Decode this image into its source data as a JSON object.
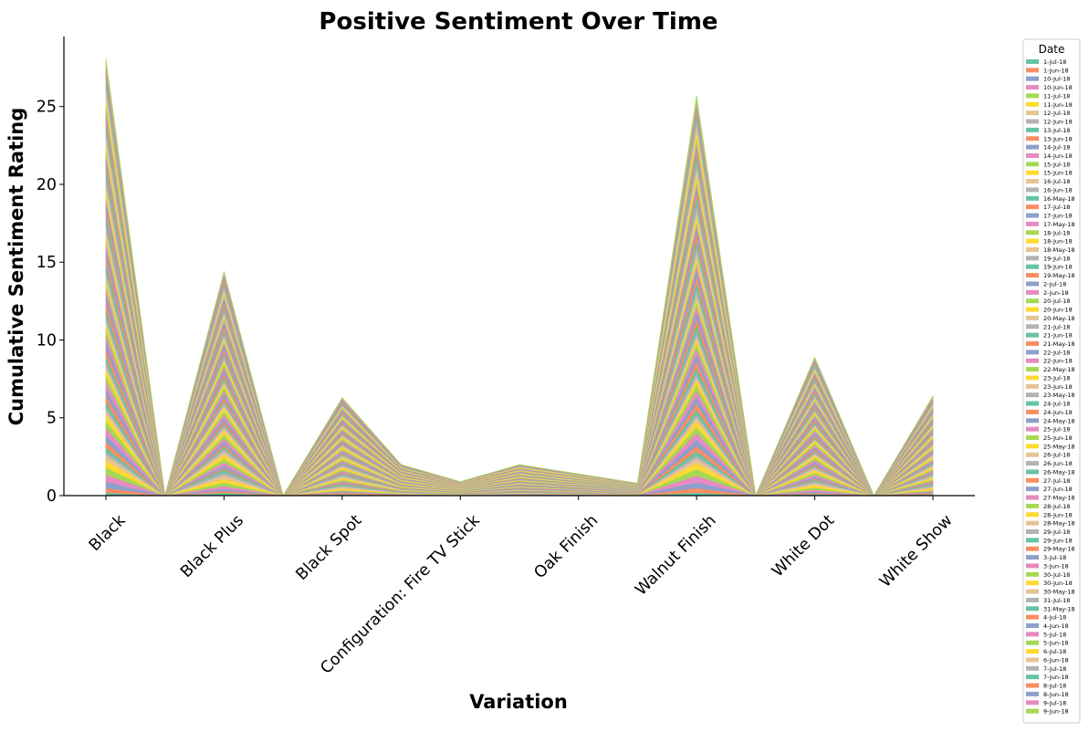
{
  "chart_data": {
    "type": "area",
    "stacked": true,
    "title": "Positive Sentiment Over Time",
    "xlabel": "Variation",
    "ylabel": "Cumulative Sentiment Rating",
    "ylim": [
      0,
      29.5
    ],
    "yticks": [
      0,
      5,
      10,
      15,
      20,
      25
    ],
    "grid": false,
    "legend": {
      "title": "Date",
      "placement": "right"
    },
    "categories": [
      "Black",
      "",
      "Black  Plus",
      "",
      "Black  Spot",
      "",
      "Configuration: Fire TV Stick",
      "",
      "Oak Finish",
      "",
      "Walnut Finish",
      "",
      "White  Dot",
      "",
      "White  Show"
    ],
    "tick_categories": [
      "Black",
      "Black  Plus",
      "Black  Spot",
      "Configuration: Fire TV Stick",
      "Oak Finish",
      "Walnut Finish",
      "White  Dot",
      "White  Show"
    ],
    "totals": [
      28.1,
      0,
      14.4,
      0,
      6.3,
      2.0,
      0.9,
      2.0,
      1.4,
      0.8,
      25.7,
      0,
      8.9,
      0,
      6.4
    ],
    "series_names": [
      "1-Jul-18",
      "1-Jun-18",
      "10-Jul-18",
      "10-Jun-18",
      "11-Jul-18",
      "11-Jun-18",
      "12-Jul-18",
      "12-Jun-18",
      "13-Jul-18",
      "13-Jun-18",
      "14-Jul-18",
      "14-Jun-18",
      "15-Jul-18",
      "15-Jun-18",
      "16-Jul-18",
      "16-Jun-18",
      "16-May-18",
      "17-Jul-18",
      "17-Jun-18",
      "17-May-18",
      "18-Jul-18",
      "18-Jun-18",
      "18-May-18",
      "19-Jul-18",
      "19-Jun-18",
      "19-May-18",
      "2-Jul-18",
      "2-Jun-18",
      "20-Jul-18",
      "20-Jun-18",
      "20-May-18",
      "21-Jul-18",
      "21-Jun-18",
      "21-May-18",
      "22-Jul-18",
      "22-Jun-18",
      "22-May-18",
      "23-Jul-18",
      "23-Jun-18",
      "23-May-18",
      "24-Jul-18",
      "24-Jun-18",
      "24-May-18",
      "25-Jul-18",
      "25-Jun-18",
      "25-May-18",
      "26-Jul-18",
      "26-Jun-18",
      "26-May-18",
      "27-Jul-18",
      "27-Jun-18",
      "27-May-18",
      "28-Jul-18",
      "28-Jun-18",
      "28-May-18",
      "29-Jul-18",
      "29-Jun-18",
      "29-May-18",
      "3-Jul-18",
      "3-Jun-18",
      "30-Jul-18",
      "30-Jun-18",
      "30-May-18",
      "31-Jul-18",
      "31-May-18",
      "4-Jul-18",
      "4-Jun-18",
      "5-Jul-18",
      "5-Jun-18",
      "6-Jul-18",
      "6-Jun-18",
      "7-Jul-18",
      "7-Jun-18",
      "8-Jul-18",
      "8-Jun-18",
      "9-Jul-18",
      "9-Jun-18"
    ],
    "palette": [
      "#66c2a5",
      "#fc8d62",
      "#8da0cb",
      "#e78ac3",
      "#a6d854",
      "#ffd92f",
      "#e5c494",
      "#b3b3b3"
    ]
  }
}
